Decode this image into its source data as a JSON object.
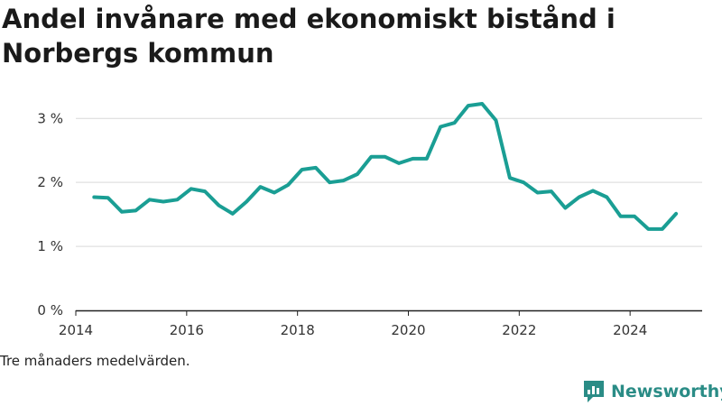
{
  "title": "Andel invånare med ekonomiskt bistånd i Norbergs kommun",
  "footnote": "Tre månaders medelvärden.",
  "brand": {
    "name": "Newsworthy",
    "icon": "newsworthy-logo-icon",
    "color": "#2a8c86"
  },
  "chart_data": {
    "type": "line",
    "title": "Andel invånare med ekonomiskt bistånd i Norbergs kommun",
    "xlabel": "",
    "ylabel": "",
    "xlim": [
      2014,
      2025.3
    ],
    "ylim": [
      0,
      3.3
    ],
    "x_ticks": [
      2014,
      2016,
      2018,
      2020,
      2022,
      2024
    ],
    "y_ticks": [
      0,
      1,
      2,
      3
    ],
    "y_tick_suffix": " %",
    "grid": "horizontal",
    "line_color": "#1a9e94",
    "series": [
      {
        "x": [
          2014.33,
          2014.58,
          2014.83,
          2015.08,
          2015.33,
          2015.58,
          2015.83,
          2016.08,
          2016.33,
          2016.58,
          2016.83,
          2017.08,
          2017.33,
          2017.58,
          2017.83,
          2018.08,
          2018.33,
          2018.58,
          2018.83,
          2019.08,
          2019.33,
          2019.58,
          2019.83,
          2020.08,
          2020.33,
          2020.58,
          2020.83,
          2021.08,
          2021.33,
          2021.58,
          2021.83,
          2022.08,
          2022.33,
          2022.58,
          2022.83,
          2023.08,
          2023.33,
          2023.58,
          2023.83,
          2024.08,
          2024.33,
          2024.58,
          2024.83
        ],
        "values": [
          1.77,
          1.76,
          1.54,
          1.56,
          1.73,
          1.7,
          1.73,
          1.9,
          1.86,
          1.64,
          1.51,
          1.7,
          1.93,
          1.84,
          1.96,
          2.2,
          2.23,
          2.0,
          2.03,
          2.13,
          2.4,
          2.4,
          2.3,
          2.37,
          2.37,
          2.87,
          2.93,
          3.2,
          3.23,
          2.97,
          2.07,
          2.0,
          1.84,
          1.86,
          1.6,
          1.77,
          1.87,
          1.77,
          1.47,
          1.47,
          1.27,
          1.27,
          1.51
        ]
      }
    ]
  }
}
